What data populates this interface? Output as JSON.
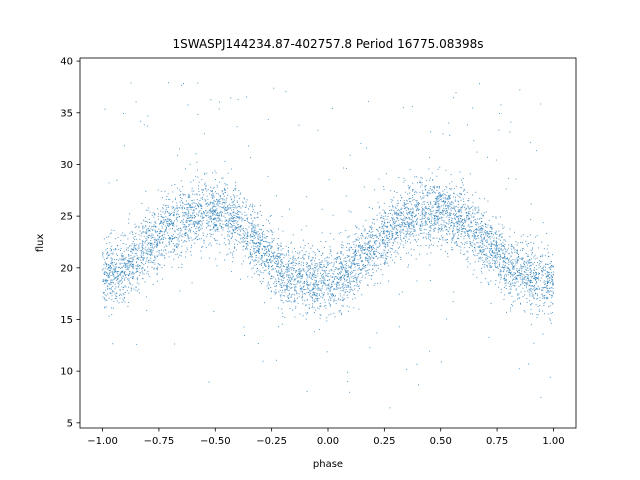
{
  "chart_data": {
    "type": "scatter",
    "title": "1SWASPJ144234.87-402757.8 Period 16775.08398s",
    "xlabel": "phase",
    "ylabel": "flux",
    "xlim": [
      -1.1,
      1.1
    ],
    "ylim": [
      4.5,
      40.3
    ],
    "x_ticks": [
      -1.0,
      -0.75,
      -0.5,
      -0.25,
      0.0,
      0.25,
      0.5,
      0.75,
      1.0
    ],
    "x_tick_labels": [
      "−1.00",
      "−0.75",
      "−0.50",
      "−0.25",
      "0.00",
      "0.25",
      "0.50",
      "0.75",
      "1.00"
    ],
    "y_ticks": [
      5,
      10,
      15,
      20,
      25,
      30,
      35,
      40
    ],
    "y_tick_labels": [
      "5",
      "10",
      "15",
      "20",
      "25",
      "30",
      "35",
      "40"
    ],
    "grid": false,
    "legend": "none",
    "marker_color": "#1f77b4",
    "series": [
      {
        "phase": [
          -1.0,
          -0.9,
          -0.8,
          -0.7,
          -0.6,
          -0.5,
          -0.4,
          -0.3,
          -0.2,
          -0.1,
          0.0,
          0.1,
          0.2,
          0.3,
          0.4,
          0.5,
          0.6,
          0.7,
          0.8,
          0.9,
          1.0
        ],
        "mean_flux": [
          19.0,
          20.0,
          22.0,
          24.0,
          25.2,
          25.5,
          24.5,
          22.0,
          19.5,
          18.8,
          18.5,
          19.8,
          22.0,
          24.2,
          25.3,
          25.5,
          24.5,
          22.5,
          20.5,
          19.2,
          18.5
        ],
        "scatter_sd": 1.6,
        "outlier_range": [
          6,
          38.5
        ]
      }
    ]
  }
}
